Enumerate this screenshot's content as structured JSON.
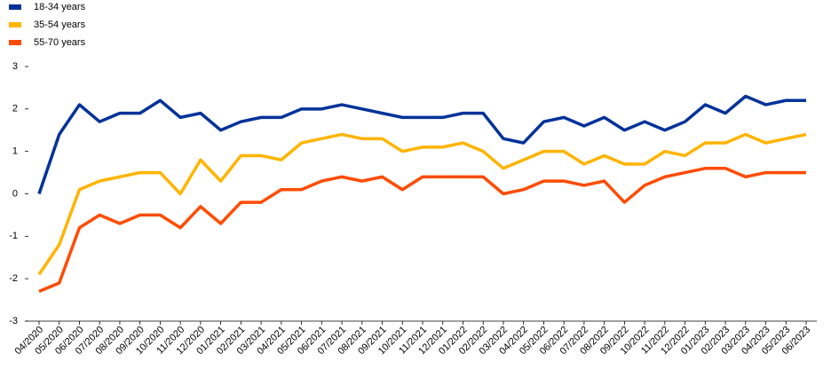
{
  "chart_data": {
    "type": "line",
    "x": [
      "04/2020",
      "05/2020",
      "06/2020",
      "07/2020",
      "08/2020",
      "09/2020",
      "10/2020",
      "11/2020",
      "12/2020",
      "01/2021",
      "02/2021",
      "03/2021",
      "04/2021",
      "05/2021",
      "06/2021",
      "07/2021",
      "08/2021",
      "09/2021",
      "10/2021",
      "11/2021",
      "12/2021",
      "01/2022",
      "02/2022",
      "03/2022",
      "04/2022",
      "05/2022",
      "06/2022",
      "07/2022",
      "08/2022",
      "09/2022",
      "10/2022",
      "11/2022",
      "12/2022",
      "01/2023",
      "02/2023",
      "03/2023",
      "04/2023",
      "05/2023",
      "06/2023"
    ],
    "series": [
      {
        "name": "18-34 years",
        "color": "#003299",
        "values": [
          0,
          1.4,
          2.1,
          1.7,
          1.9,
          1.9,
          2.2,
          1.8,
          1.9,
          1.5,
          1.7,
          1.8,
          1.8,
          2.0,
          2.0,
          2.1,
          2.0,
          1.9,
          1.8,
          1.8,
          1.8,
          1.9,
          1.9,
          1.3,
          1.2,
          1.7,
          1.8,
          1.6,
          1.8,
          1.5,
          1.7,
          1.5,
          1.7,
          2.1,
          1.9,
          2.3,
          2.1,
          2.2,
          2.2
        ]
      },
      {
        "name": "35-54 years",
        "color": "#ffb400",
        "values": [
          -1.9,
          -1.2,
          0.1,
          0.3,
          0.4,
          0.5,
          0.5,
          0.0,
          0.8,
          0.3,
          0.9,
          0.9,
          0.8,
          1.2,
          1.3,
          1.4,
          1.3,
          1.3,
          1.0,
          1.1,
          1.1,
          1.2,
          1.0,
          0.6,
          0.8,
          1.0,
          1.0,
          0.7,
          0.9,
          0.7,
          0.7,
          1.0,
          0.9,
          1.2,
          1.2,
          1.4,
          1.2,
          1.3,
          1.4
        ]
      },
      {
        "name": "55-70 years",
        "color": "#ff4b00",
        "values": [
          -2.3,
          -2.1,
          -0.8,
          -0.5,
          -0.7,
          -0.5,
          -0.5,
          -0.8,
          -0.3,
          -0.7,
          -0.2,
          -0.2,
          0.1,
          0.1,
          0.3,
          0.4,
          0.3,
          0.4,
          0.1,
          0.4,
          0.4,
          0.4,
          0.4,
          0.0,
          0.1,
          0.3,
          0.3,
          0.2,
          0.3,
          -0.2,
          0.2,
          0.4,
          0.5,
          0.6,
          0.6,
          0.4,
          0.5,
          0.5,
          0.5
        ]
      }
    ],
    "ylim": [
      -3,
      3
    ],
    "yticks": [
      -3,
      -2,
      -1,
      0,
      1,
      2,
      3
    ],
    "legend": "top-left"
  }
}
